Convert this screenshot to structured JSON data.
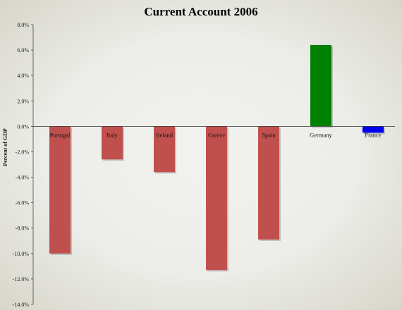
{
  "chart_data": {
    "type": "bar",
    "title": "Current Account 2006",
    "xlabel": "",
    "ylabel": "Percent of GDP",
    "categories": [
      "Portugal",
      "Italy",
      "Ireland",
      "Greece",
      "Spain",
      "Germany",
      "France"
    ],
    "values": [
      -10.0,
      -2.6,
      -3.6,
      -11.3,
      -8.9,
      6.4,
      -0.5
    ],
    "bar_colors": [
      "#c0504d",
      "#c0504d",
      "#c0504d",
      "#c0504d",
      "#c0504d",
      "#008000",
      "#0000ee"
    ],
    "ylim": [
      -14.0,
      8.0
    ],
    "yticks": [
      8.0,
      6.0,
      4.0,
      2.0,
      0.0,
      -2.0,
      -4.0,
      -6.0,
      -8.0,
      -10.0,
      -12.0,
      -14.0
    ],
    "ytick_labels": [
      "8.0%",
      "6.0%",
      "4.0%",
      "2.0%",
      "0.0%",
      "-2.0%",
      "-4.0%",
      "-6.0%",
      "-8.0%",
      "-10.0%",
      "-12.0%",
      "-14.0%"
    ],
    "grid": false,
    "legend": "none"
  }
}
